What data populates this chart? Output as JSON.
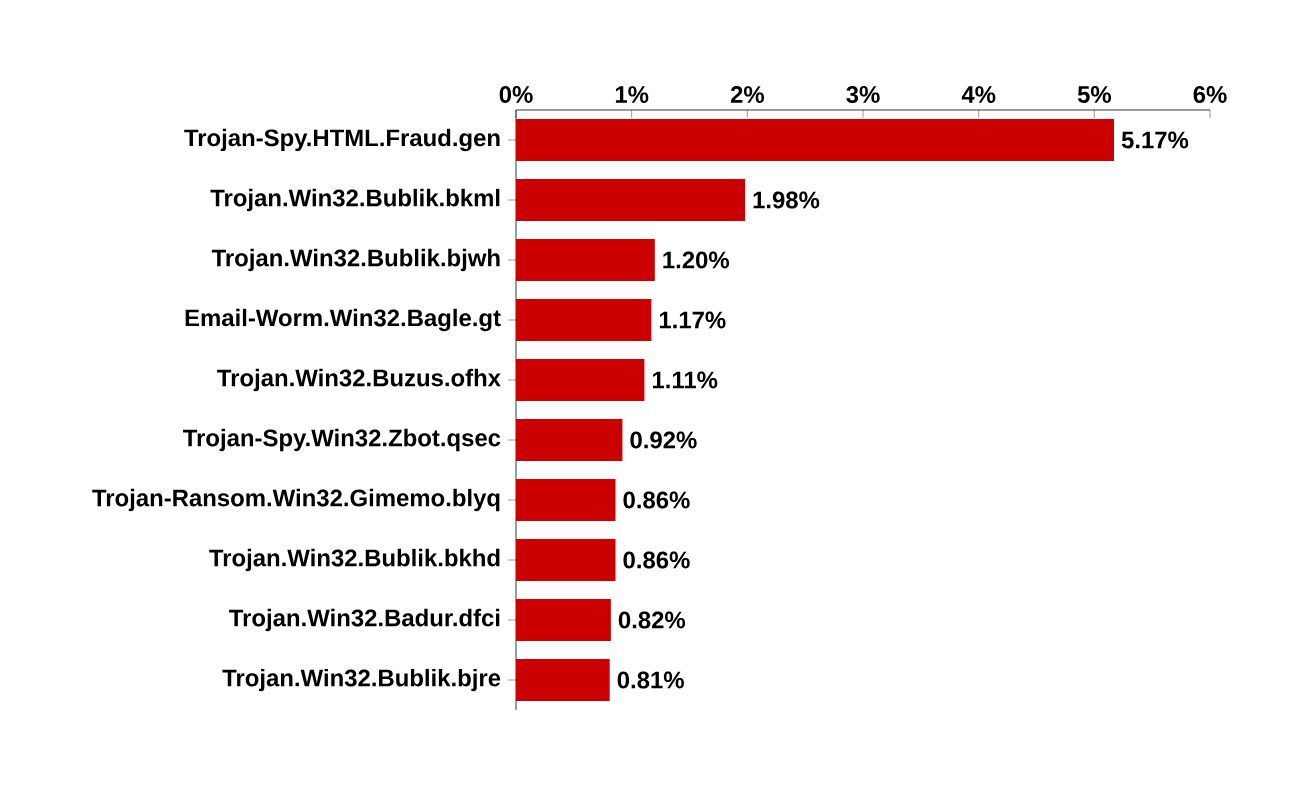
{
  "chart_data": {
    "type": "bar",
    "orientation": "horizontal",
    "categories": [
      "Trojan-Spy.HTML.Fraud.gen",
      "Trojan.Win32.Bublik.bkml",
      "Trojan.Win32.Bublik.bjwh",
      "Email-Worm.Win32.Bagle.gt",
      "Trojan.Win32.Buzus.ofhx",
      "Trojan-Spy.Win32.Zbot.qsec",
      "Trojan-Ransom.Win32.Gimemo.blyq",
      "Trojan.Win32.Bublik.bkhd",
      "Trojan.Win32.Badur.dfci",
      "Trojan.Win32.Bublik.bjre"
    ],
    "values": [
      5.17,
      1.98,
      1.2,
      1.17,
      1.11,
      0.92,
      0.86,
      0.86,
      0.82,
      0.81
    ],
    "value_labels": [
      "5.17%",
      "1.98%",
      "1.20%",
      "1.17%",
      "1.11%",
      "0.92%",
      "0.86%",
      "0.86%",
      "0.82%",
      "0.81%"
    ],
    "color": "#cc0000",
    "xlim": [
      0,
      6
    ],
    "xticks": [
      {
        "value": 0,
        "label": "0%"
      },
      {
        "value": 1,
        "label": "1%"
      },
      {
        "value": 2,
        "label": "2%"
      },
      {
        "value": 3,
        "label": "3%"
      },
      {
        "value": 4,
        "label": "4%"
      },
      {
        "value": 5,
        "label": "5%"
      },
      {
        "value": 6,
        "label": "6%"
      }
    ]
  }
}
